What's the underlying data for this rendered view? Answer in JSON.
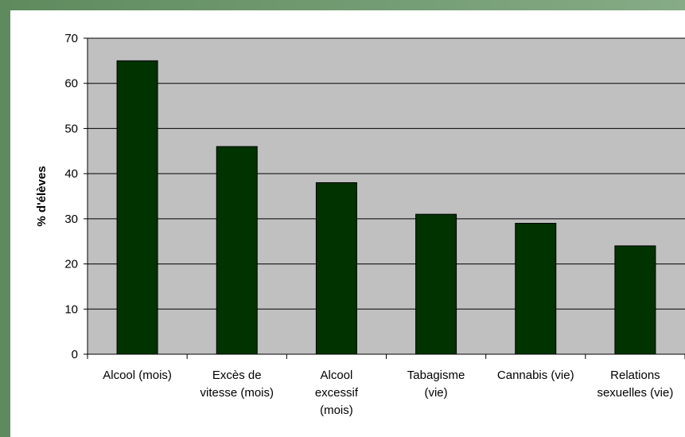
{
  "chart_data": {
    "type": "bar",
    "title": "",
    "xlabel": "",
    "ylabel": "% d'élèves",
    "ylim": [
      0,
      70
    ],
    "yticks": [
      0,
      10,
      20,
      30,
      40,
      50,
      60,
      70
    ],
    "grid": true,
    "legend": "none",
    "categories": [
      "Alcool (mois)",
      "Excès de vitesse (mois)",
      "Alcool excessif (mois)",
      "Tabagisme (vie)",
      "Cannabis (vie)",
      "Relations sexuelles (vie)"
    ],
    "category_lines": [
      [
        "Alcool (mois)"
      ],
      [
        "Excès de",
        "vitesse (mois)"
      ],
      [
        "Alcool",
        "excessif",
        "(mois)"
      ],
      [
        "Tabagisme",
        "(vie)"
      ],
      [
        "Cannabis (vie)"
      ],
      [
        "Relations",
        "sexuelles (vie)"
      ]
    ],
    "values": [
      65,
      46,
      38,
      31,
      29,
      24
    ],
    "colors": {
      "bar": "#003300",
      "plot_background": "#c0c0c0",
      "gridline": "#000000",
      "panel": "#ffffff"
    }
  }
}
